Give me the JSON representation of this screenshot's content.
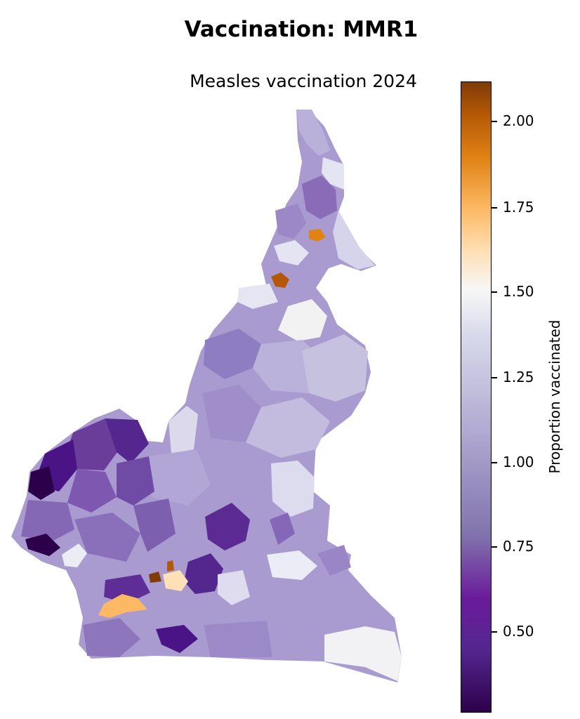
{
  "title": "Vaccination: MMR1",
  "map": {
    "subtitle": "Measles vaccination 2024",
    "region_colors": {
      "dark_purple": "#2d004b",
      "deep_purple": "#54278f",
      "mid_purple": "#8a6bb8",
      "light_purple": "#b2abd2",
      "pale_lavender": "#d8daeb",
      "near_white": "#f2f2f2",
      "cream": "#fee0b6",
      "light_orange": "#fdb863",
      "orange": "#e08214",
      "dark_orange": "#b35806",
      "brown": "#7f3b08"
    }
  },
  "colorbar": {
    "label": "Proportion vaccinated",
    "ticks": [
      "2.00",
      "1.75",
      "1.50",
      "1.25",
      "1.00",
      "0.75",
      "0.50"
    ],
    "range": [
      0.26,
      2.12
    ]
  }
}
